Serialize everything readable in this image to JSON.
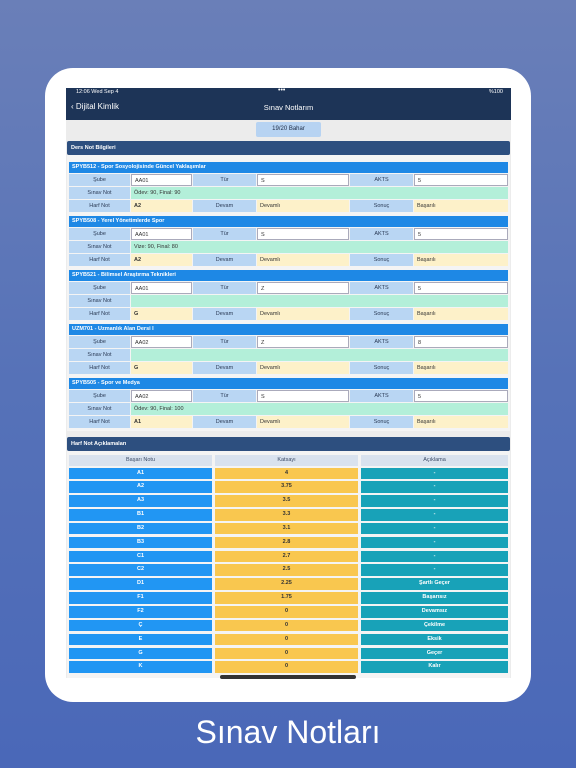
{
  "status_bar": {
    "time": "12:06  Wed Sep 4",
    "battery": "%100"
  },
  "nav": {
    "back": "Dijital Kimlik",
    "title": "Sınav Notlarım"
  },
  "term_button": "19/20 Bahar",
  "courses_panel": {
    "title": "Ders Not Bilgileri",
    "labels": {
      "sube": "Şube",
      "tur": "Tür",
      "akts": "AKTS",
      "sinav": "Sınav Not",
      "harf": "Harf Not",
      "devam": "Devam",
      "sonuc": "Sonuç"
    },
    "courses": [
      {
        "name": "SPYB512 - Spor Sosyolojisinde Güncel Yaklaşımlar",
        "sube": "AA01",
        "tur": "S",
        "akts": "5",
        "sinav": "Ödev: 90, Final: 90",
        "harf": "A2",
        "devam": "Devamlı",
        "sonuc": "Başarılı"
      },
      {
        "name": "SPYB508 - Yerel Yönetimlerde Spor",
        "sube": "AA01",
        "tur": "S",
        "akts": "5",
        "sinav": "Vize: 90, Final: 80",
        "harf": "A2",
        "devam": "Devamlı",
        "sonuc": "Başarılı"
      },
      {
        "name": "SPYB521 - Bilimsel Araştırma Teknikleri",
        "sube": "AA01",
        "tur": "Z",
        "akts": "5",
        "harf": "G",
        "devam": "Devamlı",
        "sonuc": "Başarılı"
      },
      {
        "name": "UZM701 - Uzmanlık Alan Dersi I",
        "sube": "AA02",
        "tur": "Z",
        "akts": "8",
        "harf": "G",
        "devam": "Devamlı",
        "sonuc": "Başarılı"
      },
      {
        "name": "SPYB505 - Spor ve Medya",
        "sube": "AA02",
        "tur": "S",
        "akts": "5",
        "sinav": "Ödev: 90, Final: 100",
        "harf": "A1",
        "devam": "Devamlı",
        "sonuc": "Başarılı"
      }
    ]
  },
  "grades_panel": {
    "title": "Harf Not Açıklamaları",
    "columns": [
      "Başarı Notu",
      "Katsayı",
      "Açıklama"
    ],
    "rows": [
      [
        "A1",
        4,
        "-"
      ],
      [
        "A2",
        3.75,
        "-"
      ],
      [
        "A3",
        3.5,
        "-"
      ],
      [
        "B1",
        3.3,
        "-"
      ],
      [
        "B2",
        3.1,
        "-"
      ],
      [
        "B3",
        2.8,
        "-"
      ],
      [
        "C1",
        2.7,
        "-"
      ],
      [
        "C2",
        2.5,
        "-"
      ],
      [
        "D1",
        2.25,
        "Şartlı Geçer"
      ],
      [
        "F1",
        1.75,
        "Başarısız"
      ],
      [
        "F2",
        0,
        "Devamsız"
      ],
      [
        "Ç",
        0,
        "Çekilme"
      ],
      [
        "E",
        0,
        "Eksik"
      ],
      [
        "G",
        0,
        "Geçer"
      ],
      [
        "K",
        0,
        "Kalır"
      ]
    ]
  },
  "caption": "Sınav Notları"
}
